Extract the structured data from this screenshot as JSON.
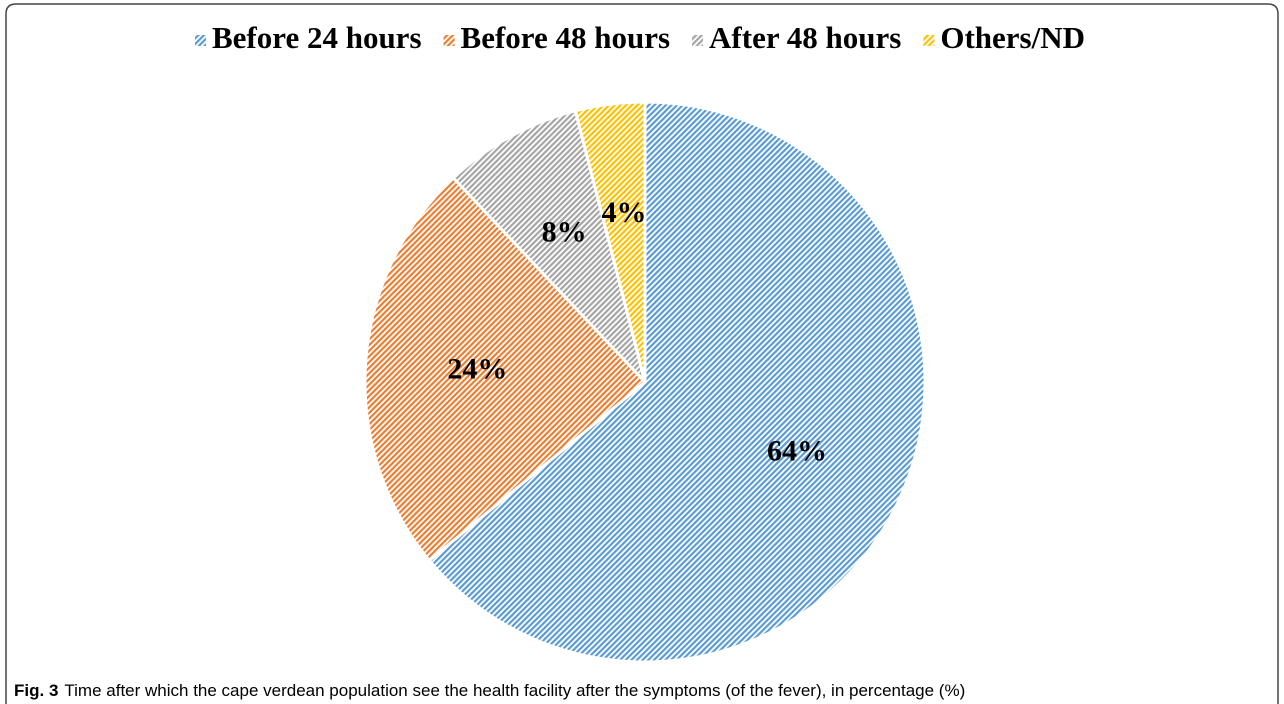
{
  "chart_data": {
    "type": "pie",
    "categories": [
      "Before 24 hours",
      "Before 48 hours",
      "After 48 hours",
      "Others/ND"
    ],
    "values": [
      64,
      24,
      8,
      4
    ],
    "value_labels": [
      "64%",
      "24%",
      "8%",
      "4%"
    ],
    "colors": [
      "#5b9bd5",
      "#ed7d31",
      "#a5a5a5",
      "#ffc000"
    ],
    "legend": "top",
    "caption_label": "Fig. 3",
    "caption": "Time after which the cape verdean population see the health facility after the symptoms (of the fever), in percentage (%)"
  }
}
